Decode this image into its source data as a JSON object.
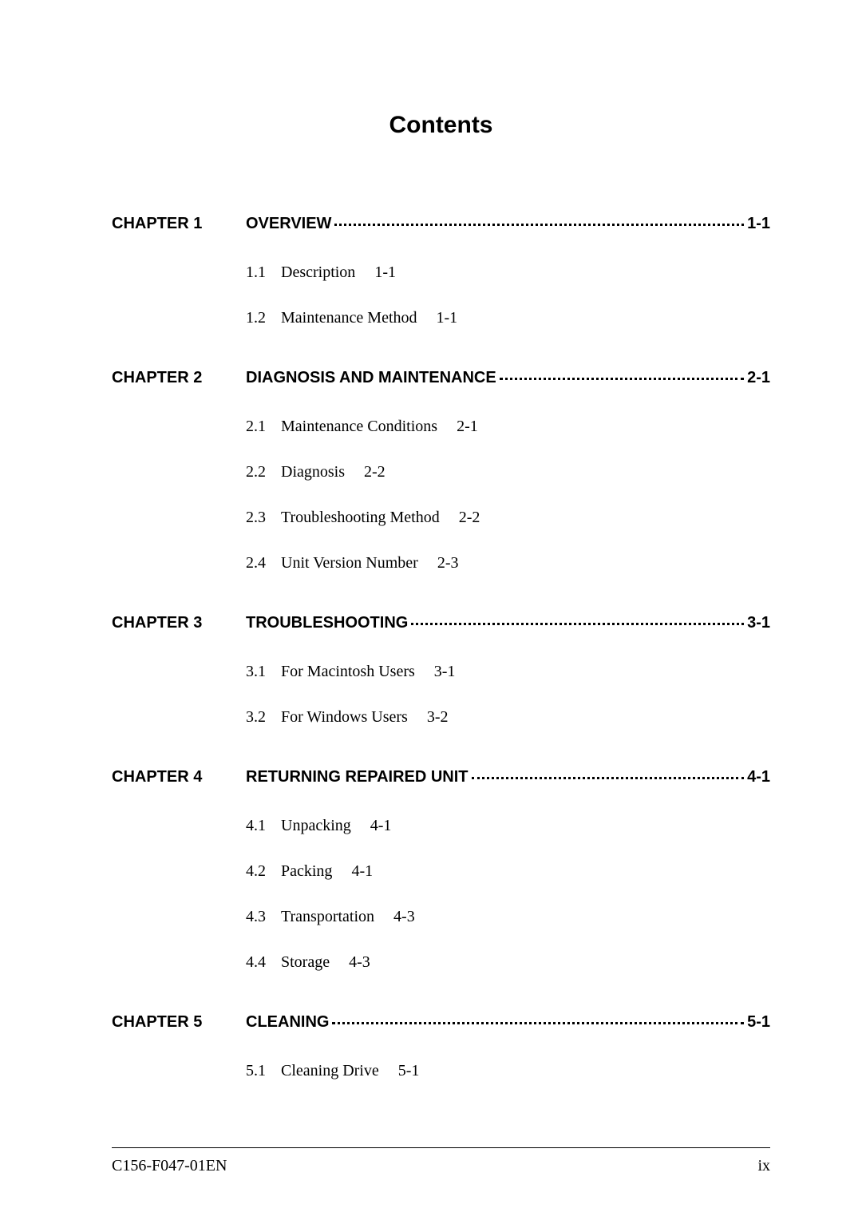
{
  "title": "Contents",
  "chapters": [
    {
      "label": "CHAPTER 1",
      "title": "OVERVIEW",
      "page": "1-1",
      "items": [
        {
          "num": "1.1",
          "text": "Description",
          "page": "1-1"
        },
        {
          "num": "1.2",
          "text": "Maintenance Method",
          "page": "1-1"
        }
      ]
    },
    {
      "label": "CHAPTER 2",
      "title": "DIAGNOSIS AND MAINTENANCE",
      "page": "2-1",
      "items": [
        {
          "num": "2.1",
          "text": "Maintenance Conditions",
          "page": "2-1"
        },
        {
          "num": "2.2",
          "text": "Diagnosis",
          "page": "2-2"
        },
        {
          "num": "2.3",
          "text": "Troubleshooting Method",
          "page": "2-2"
        },
        {
          "num": "2.4",
          "text": "Unit Version Number",
          "page": "2-3"
        }
      ]
    },
    {
      "label": "CHAPTER 3",
      "title": "TROUBLESHOOTING",
      "page": "3-1",
      "items": [
        {
          "num": "3.1",
          "text": "For Macintosh Users",
          "page": "3-1"
        },
        {
          "num": "3.2",
          "text": "For Windows Users",
          "page": "3-2"
        }
      ]
    },
    {
      "label": "CHAPTER 4",
      "title": "RETURNING REPAIRED UNIT",
      "page": "4-1",
      "items": [
        {
          "num": "4.1",
          "text": "Unpacking",
          "page": "4-1"
        },
        {
          "num": "4.2",
          "text": "Packing",
          "page": "4-1"
        },
        {
          "num": "4.3",
          "text": "Transportation",
          "page": "4-3"
        },
        {
          "num": "4.4",
          "text": "Storage",
          "page": "4-3"
        }
      ]
    },
    {
      "label": "CHAPTER 5",
      "title": "CLEANING",
      "page": "5-1",
      "items": [
        {
          "num": "5.1",
          "text": "Cleaning Drive",
          "page": "5-1"
        }
      ]
    }
  ],
  "footer": {
    "left": "C156-F047-01EN",
    "right": "ix"
  }
}
